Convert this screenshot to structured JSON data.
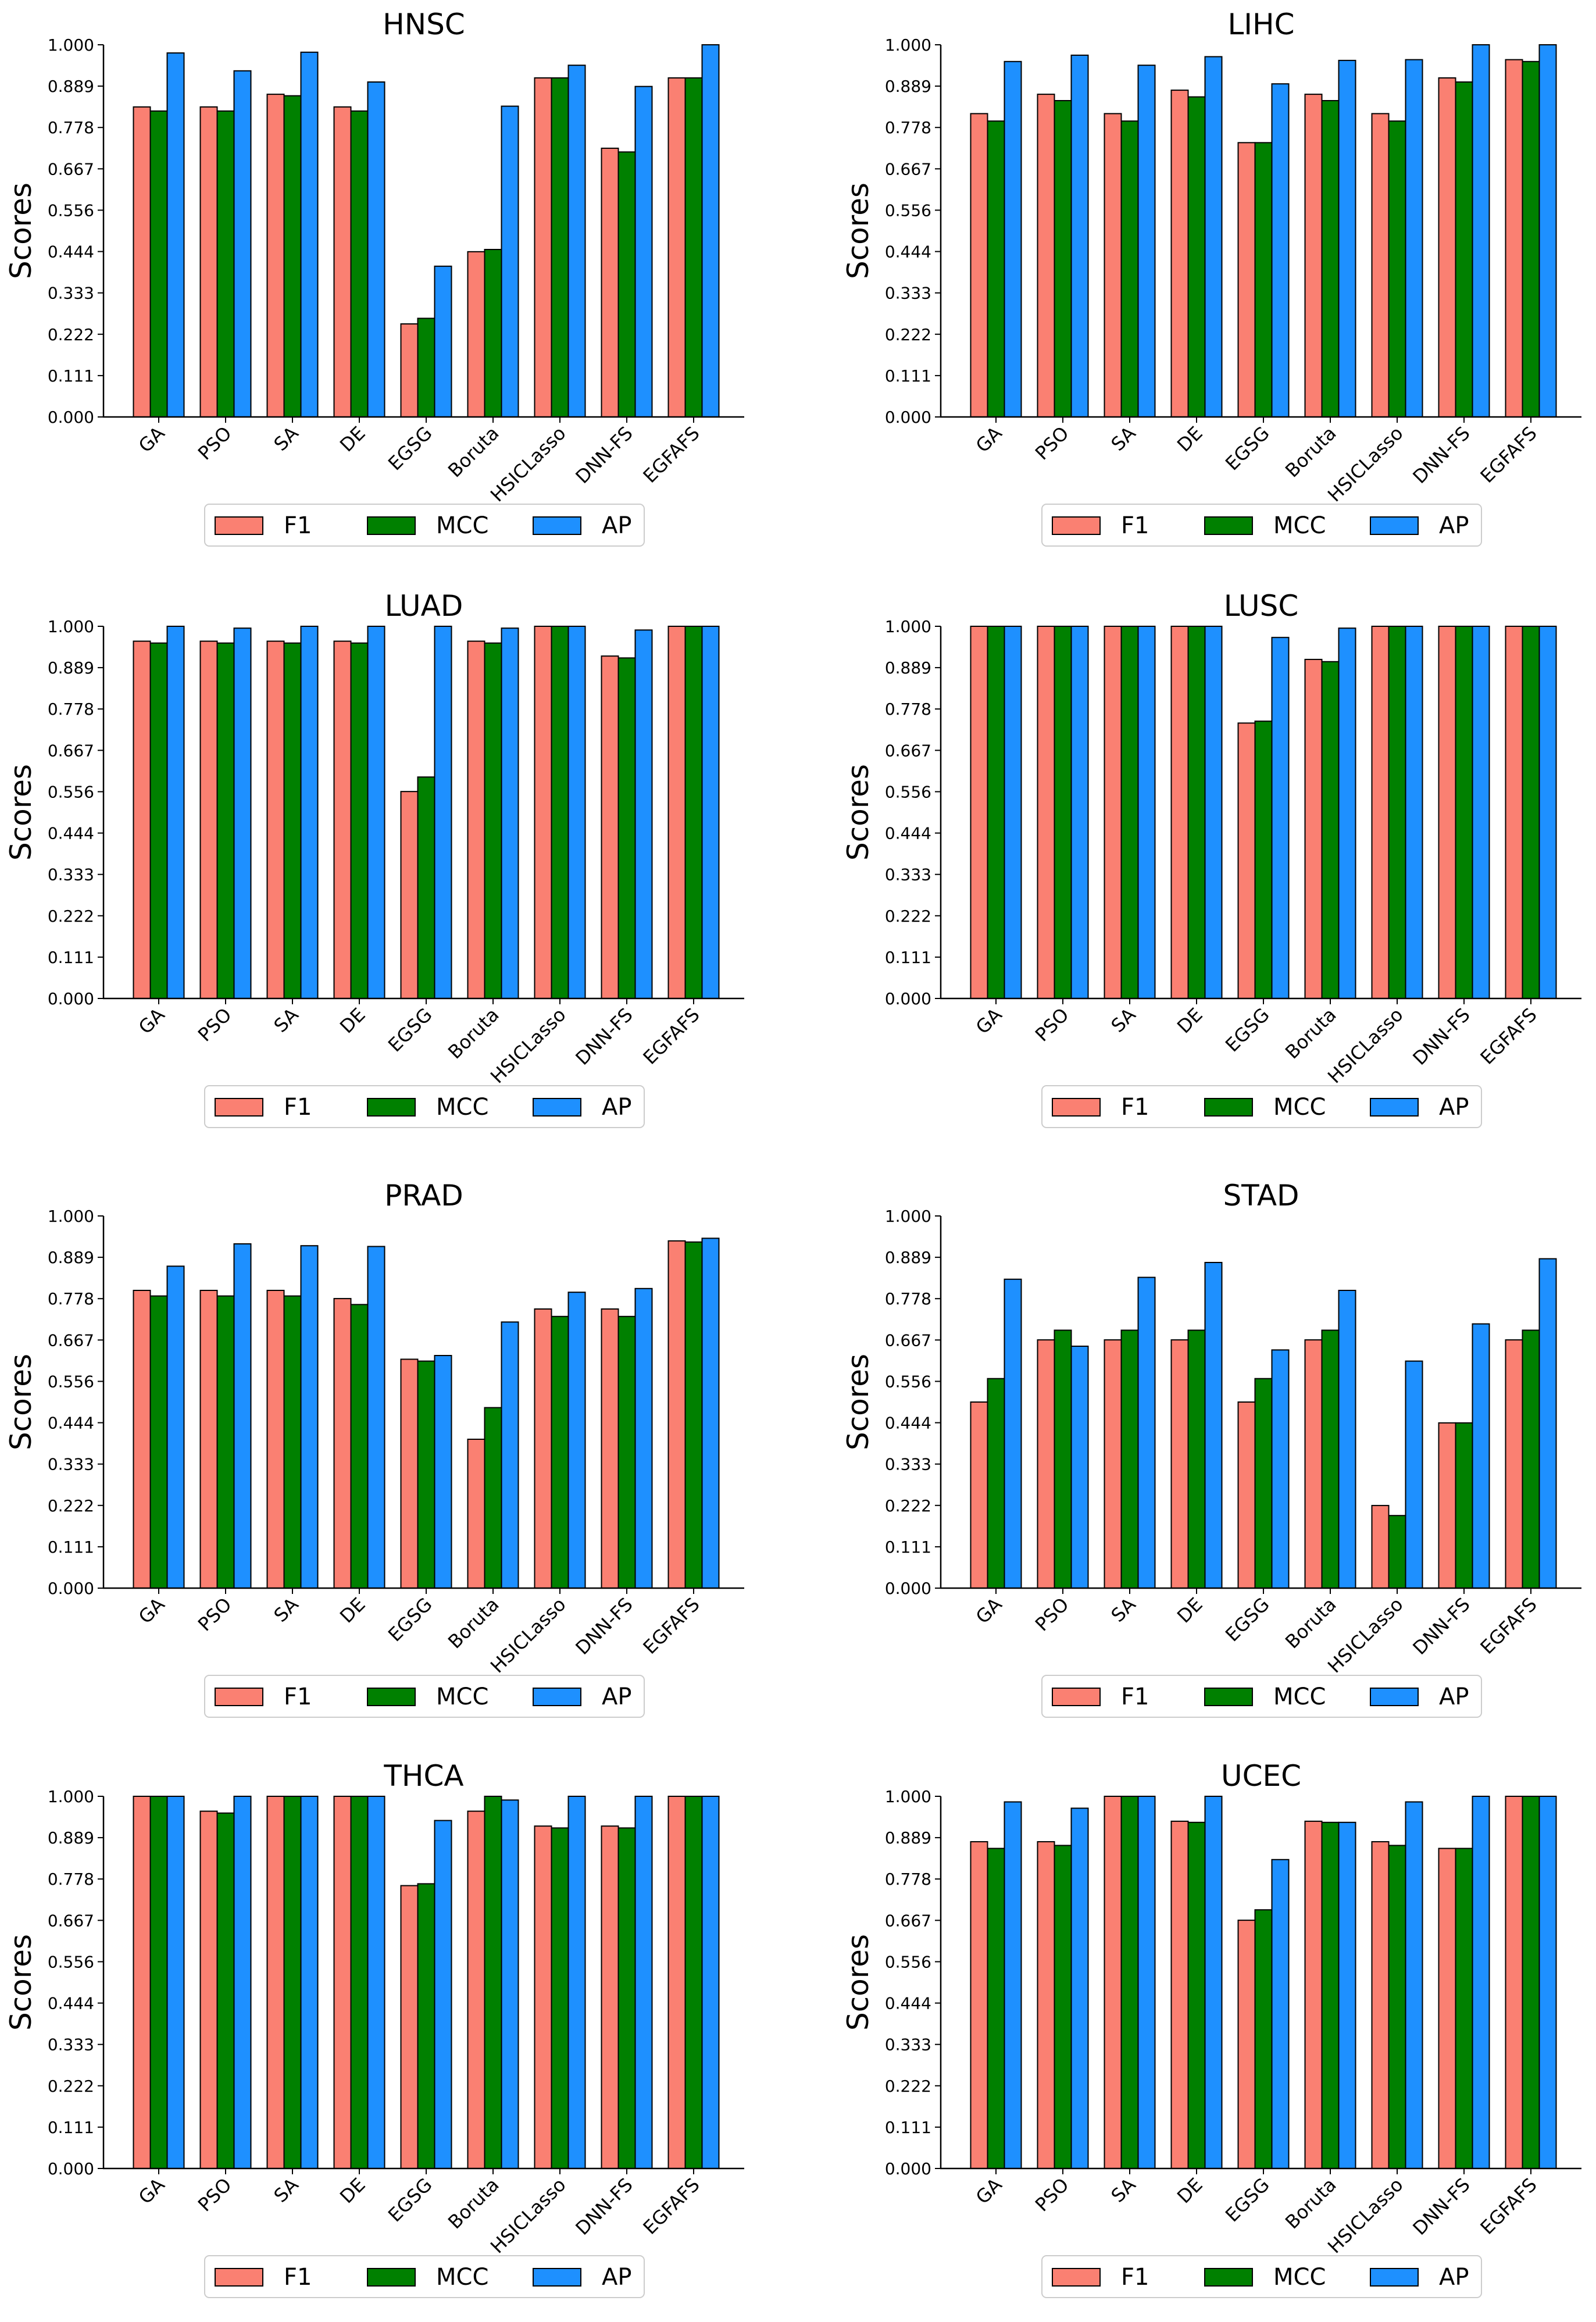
{
  "figure": {
    "colors": {
      "F1": "#FA8072",
      "MCC": "#008000",
      "AP": "#1E90FF",
      "edge": "#000000"
    }
  },
  "chart_data": [
    {
      "type": "bar",
      "title": "HNSC",
      "ylabel": "Scores",
      "xlabel": "",
      "ylim": [
        0,
        1
      ],
      "yticks": [
        "0.000",
        "0.111",
        "0.222",
        "0.333",
        "0.444",
        "0.556",
        "0.667",
        "0.778",
        "0.889",
        "1.000"
      ],
      "categories": [
        "GA",
        "PSO",
        "SA",
        "DE",
        "EGSG",
        "Boruta",
        "HSICLasso",
        "DNN-FS",
        "EGFAFS"
      ],
      "series": [
        {
          "name": "F1",
          "values": [
            0.833,
            0.833,
            0.867,
            0.833,
            0.25,
            0.444,
            0.911,
            0.722,
            0.911
          ]
        },
        {
          "name": "MCC",
          "values": [
            0.822,
            0.822,
            0.863,
            0.822,
            0.265,
            0.45,
            0.911,
            0.712,
            0.911
          ]
        },
        {
          "name": "AP",
          "values": [
            0.978,
            0.93,
            0.98,
            0.9,
            0.405,
            0.835,
            0.945,
            0.888,
            1.0
          ]
        }
      ],
      "legend": {
        "placement": "bottom-center",
        "labels": [
          "F1",
          "MCC",
          "AP"
        ]
      }
    },
    {
      "type": "bar",
      "title": "LIHC",
      "ylabel": "Scores",
      "xlabel": "",
      "ylim": [
        0,
        1
      ],
      "yticks": [
        "0.000",
        "0.111",
        "0.222",
        "0.333",
        "0.444",
        "0.556",
        "0.667",
        "0.778",
        "0.889",
        "1.000"
      ],
      "categories": [
        "GA",
        "PSO",
        "SA",
        "DE",
        "EGSG",
        "Boruta",
        "HSICLasso",
        "DNN-FS",
        "EGFAFS"
      ],
      "series": [
        {
          "name": "F1",
          "values": [
            0.815,
            0.867,
            0.815,
            0.878,
            0.737,
            0.867,
            0.815,
            0.911,
            0.96
          ]
        },
        {
          "name": "MCC",
          "values": [
            0.795,
            0.85,
            0.795,
            0.86,
            0.737,
            0.85,
            0.795,
            0.9,
            0.955
          ]
        },
        {
          "name": "AP",
          "values": [
            0.955,
            0.972,
            0.945,
            0.968,
            0.895,
            0.958,
            0.96,
            1.0,
            1.0
          ]
        }
      ],
      "legend": {
        "placement": "bottom-center",
        "labels": [
          "F1",
          "MCC",
          "AP"
        ]
      }
    },
    {
      "type": "bar",
      "title": "LUAD",
      "ylabel": "Scores",
      "xlabel": "",
      "ylim": [
        0,
        1
      ],
      "yticks": [
        "0.000",
        "0.111",
        "0.222",
        "0.333",
        "0.444",
        "0.556",
        "0.667",
        "0.778",
        "0.889",
        "1.000"
      ],
      "categories": [
        "GA",
        "PSO",
        "SA",
        "DE",
        "EGSG",
        "Boruta",
        "HSICLasso",
        "DNN-FS",
        "EGFAFS"
      ],
      "series": [
        {
          "name": "F1",
          "values": [
            0.96,
            0.96,
            0.96,
            0.96,
            0.556,
            0.96,
            1.0,
            0.92,
            1.0
          ]
        },
        {
          "name": "MCC",
          "values": [
            0.955,
            0.955,
            0.955,
            0.955,
            0.595,
            0.955,
            1.0,
            0.915,
            1.0
          ]
        },
        {
          "name": "AP",
          "values": [
            1.0,
            0.995,
            1.0,
            1.0,
            1.0,
            0.995,
            1.0,
            0.99,
            1.0
          ]
        }
      ],
      "legend": {
        "placement": "bottom-center",
        "labels": [
          "F1",
          "MCC",
          "AP"
        ]
      }
    },
    {
      "type": "bar",
      "title": "LUSC",
      "ylabel": "Scores",
      "xlabel": "",
      "ylim": [
        0,
        1
      ],
      "yticks": [
        "0.000",
        "0.111",
        "0.222",
        "0.333",
        "0.444",
        "0.556",
        "0.667",
        "0.778",
        "0.889",
        "1.000"
      ],
      "categories": [
        "GA",
        "PSO",
        "SA",
        "DE",
        "EGSG",
        "Boruta",
        "HSICLasso",
        "DNN-FS",
        "EGFAFS"
      ],
      "series": [
        {
          "name": "F1",
          "values": [
            1.0,
            1.0,
            1.0,
            1.0,
            0.74,
            0.911,
            1.0,
            1.0,
            1.0
          ]
        },
        {
          "name": "MCC",
          "values": [
            1.0,
            1.0,
            1.0,
            1.0,
            0.745,
            0.905,
            1.0,
            1.0,
            1.0
          ]
        },
        {
          "name": "AP",
          "values": [
            1.0,
            1.0,
            1.0,
            1.0,
            0.97,
            0.995,
            1.0,
            1.0,
            1.0
          ]
        }
      ],
      "legend": {
        "placement": "bottom-center",
        "labels": [
          "F1",
          "MCC",
          "AP"
        ]
      }
    },
    {
      "type": "bar",
      "title": "PRAD",
      "ylabel": "Scores",
      "xlabel": "",
      "ylim": [
        0,
        1
      ],
      "yticks": [
        "0.000",
        "0.111",
        "0.222",
        "0.333",
        "0.444",
        "0.556",
        "0.667",
        "0.778",
        "0.889",
        "1.000"
      ],
      "categories": [
        "GA",
        "PSO",
        "SA",
        "DE",
        "EGSG",
        "Boruta",
        "HSICLasso",
        "DNN-FS",
        "EGFAFS"
      ],
      "series": [
        {
          "name": "F1",
          "values": [
            0.8,
            0.8,
            0.8,
            0.778,
            0.615,
            0.4,
            0.75,
            0.75,
            0.933
          ]
        },
        {
          "name": "MCC",
          "values": [
            0.785,
            0.785,
            0.785,
            0.762,
            0.61,
            0.485,
            0.73,
            0.73,
            0.93
          ]
        },
        {
          "name": "AP",
          "values": [
            0.865,
            0.925,
            0.92,
            0.918,
            0.625,
            0.715,
            0.795,
            0.805,
            0.94
          ]
        }
      ],
      "legend": {
        "placement": "bottom-center",
        "labels": [
          "F1",
          "MCC",
          "AP"
        ]
      }
    },
    {
      "type": "bar",
      "title": "STAD",
      "ylabel": "Scores",
      "xlabel": "",
      "ylim": [
        0,
        1
      ],
      "yticks": [
        "0.000",
        "0.111",
        "0.222",
        "0.333",
        "0.444",
        "0.556",
        "0.667",
        "0.778",
        "0.889",
        "1.000"
      ],
      "categories": [
        "GA",
        "PSO",
        "SA",
        "DE",
        "EGSG",
        "Boruta",
        "HSICLasso",
        "DNN-FS",
        "EGFAFS"
      ],
      "series": [
        {
          "name": "F1",
          "values": [
            0.5,
            0.667,
            0.667,
            0.667,
            0.5,
            0.667,
            0.222,
            0.444,
            0.667
          ]
        },
        {
          "name": "MCC",
          "values": [
            0.563,
            0.693,
            0.693,
            0.693,
            0.563,
            0.693,
            0.195,
            0.444,
            0.693
          ]
        },
        {
          "name": "AP",
          "values": [
            0.83,
            0.65,
            0.835,
            0.875,
            0.64,
            0.8,
            0.61,
            0.71,
            0.885
          ]
        }
      ],
      "legend": {
        "placement": "bottom-center",
        "labels": [
          "F1",
          "MCC",
          "AP"
        ]
      }
    },
    {
      "type": "bar",
      "title": "THCA",
      "ylabel": "Scores",
      "xlabel": "",
      "ylim": [
        0,
        1
      ],
      "yticks": [
        "0.000",
        "0.111",
        "0.222",
        "0.333",
        "0.444",
        "0.556",
        "0.667",
        "0.778",
        "0.889",
        "1.000"
      ],
      "categories": [
        "GA",
        "PSO",
        "SA",
        "DE",
        "EGSG",
        "Boruta",
        "HSICLasso",
        "DNN-FS",
        "EGFAFS"
      ],
      "series": [
        {
          "name": "F1",
          "values": [
            1.0,
            0.96,
            1.0,
            1.0,
            0.76,
            0.96,
            0.92,
            0.92,
            1.0
          ]
        },
        {
          "name": "MCC",
          "values": [
            1.0,
            0.955,
            1.0,
            1.0,
            0.765,
            1.0,
            0.915,
            0.915,
            1.0
          ]
        },
        {
          "name": "AP",
          "values": [
            1.0,
            1.0,
            1.0,
            1.0,
            0.935,
            0.99,
            1.0,
            1.0,
            1.0
          ]
        }
      ],
      "legend": {
        "placement": "bottom-center",
        "labels": [
          "F1",
          "MCC",
          "AP"
        ]
      }
    },
    {
      "type": "bar",
      "title": "UCEC",
      "ylabel": "Scores",
      "xlabel": "",
      "ylim": [
        0,
        1
      ],
      "yticks": [
        "0.000",
        "0.111",
        "0.222",
        "0.333",
        "0.444",
        "0.556",
        "0.667",
        "0.778",
        "0.889",
        "1.000"
      ],
      "categories": [
        "GA",
        "PSO",
        "SA",
        "DE",
        "EGSG",
        "Boruta",
        "HSICLasso",
        "DNN-FS",
        "EGFAFS"
      ],
      "series": [
        {
          "name": "F1",
          "values": [
            0.878,
            0.878,
            1.0,
            0.933,
            0.667,
            0.933,
            0.878,
            0.86,
            1.0
          ]
        },
        {
          "name": "MCC",
          "values": [
            0.86,
            0.868,
            1.0,
            0.93,
            0.695,
            0.93,
            0.868,
            0.86,
            1.0
          ]
        },
        {
          "name": "AP",
          "values": [
            0.985,
            0.968,
            1.0,
            1.0,
            0.83,
            0.93,
            0.985,
            1.0,
            1.0
          ]
        }
      ],
      "legend": {
        "placement": "bottom-center",
        "labels": [
          "F1",
          "MCC",
          "AP"
        ]
      }
    }
  ]
}
